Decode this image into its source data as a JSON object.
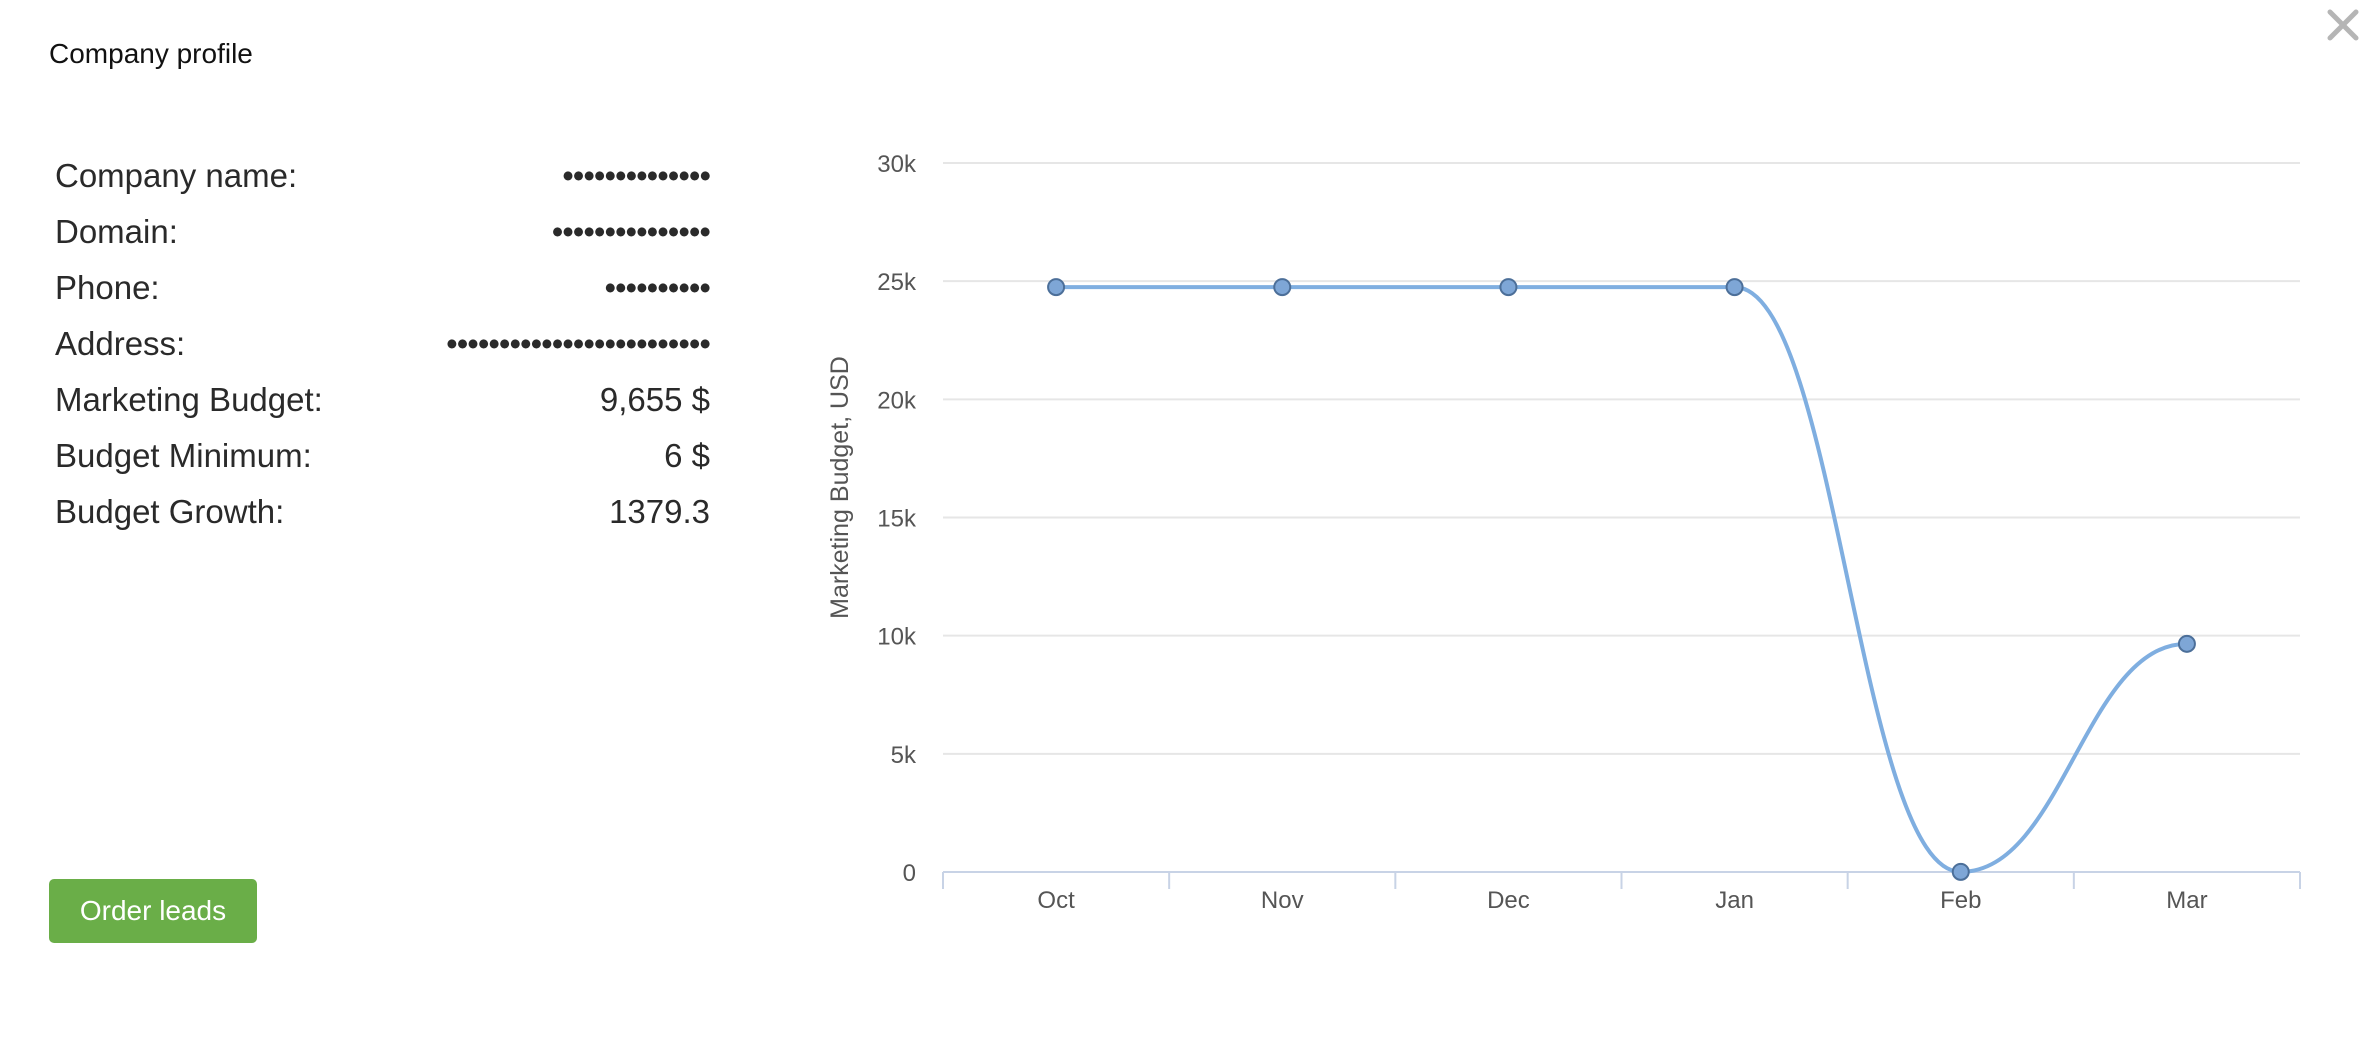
{
  "dialog": {
    "title": "Company profile",
    "close_icon": "close-icon"
  },
  "profile": {
    "rows": [
      {
        "label": "Company name:",
        "value": "••••••••••••••",
        "masked": true
      },
      {
        "label": "Domain:",
        "value": "•••••••••••••••",
        "masked": true
      },
      {
        "label": "Phone:",
        "value": "••••••••••",
        "masked": true
      },
      {
        "label": "Address:",
        "value": "•••••••••••••••••••••••••",
        "masked": true
      },
      {
        "label": "Marketing Budget:",
        "value": "9,655 $",
        "masked": false
      },
      {
        "label": "Budget Minimum:",
        "value": "6 $",
        "masked": false
      },
      {
        "label": "Budget Growth:",
        "value": "1379.3",
        "masked": false
      }
    ]
  },
  "actions": {
    "order_leads_label": "Order leads"
  },
  "colors": {
    "accent_green": "#6aae48",
    "series_line": "#7faee0",
    "series_point": "#7ea6d6",
    "grid": "#e6e6e6"
  },
  "chart_data": {
    "type": "line",
    "categories": [
      "Oct",
      "Nov",
      "Dec",
      "Jan",
      "Feb",
      "Mar"
    ],
    "series": [
      {
        "values": [
          24750,
          24750,
          24750,
          24750,
          6,
          9655
        ]
      }
    ],
    "ylabel": "Marketing Budget, USD",
    "xlabel": "",
    "ylim": [
      0,
      30000
    ],
    "yticks": [
      0,
      5000,
      10000,
      15000,
      20000,
      25000,
      30000
    ],
    "ytick_labels": [
      "0",
      "5k",
      "10k",
      "15k",
      "20k",
      "25k",
      "30k"
    ],
    "grid": true,
    "smooth": true,
    "legend": "none"
  }
}
